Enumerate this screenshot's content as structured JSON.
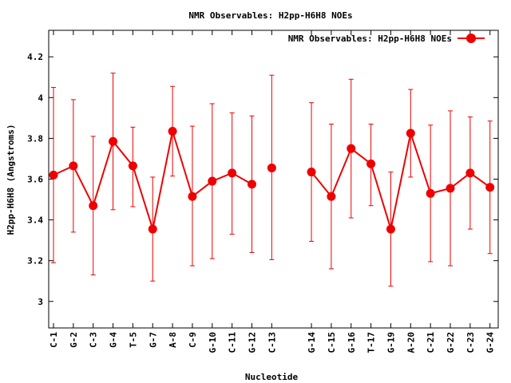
{
  "chart_data": {
    "type": "line",
    "title": "NMR Observables: H2pp-H6H8 NOEs",
    "xlabel": "Nucleotide",
    "ylabel": "H2pp-H6H8 (Angstroms)",
    "ylim": [
      2.87,
      4.33
    ],
    "yticks": [
      "3",
      "3.2",
      "3.4",
      "3.6",
      "3.8",
      "4",
      "4.2"
    ],
    "legend_position": "top-right",
    "grid": false,
    "series_color": "#ee0000",
    "x_positions": [
      1,
      2,
      3,
      4,
      5,
      6,
      7,
      8,
      9,
      10,
      11,
      12,
      14,
      15,
      16,
      17,
      18,
      19,
      20,
      21,
      22,
      23
    ],
    "segments": [
      [
        0,
        11
      ],
      [
        12,
        23
      ]
    ],
    "categories": [
      "C-1",
      "G-2",
      "C-3",
      "G-4",
      "T-5",
      "G-7",
      "A-8",
      "C-9",
      "G-10",
      "C-11",
      "G-12",
      "C-13",
      "G-14",
      "C-15",
      "G-16",
      "T-17",
      "G-19",
      "A-20",
      "C-21",
      "G-22",
      "C-23",
      "G-24"
    ],
    "series": [
      {
        "name": "NMR Observables: H2pp-H6H8 NOEs",
        "values": [
          3.62,
          3.665,
          3.47,
          3.785,
          3.665,
          3.355,
          3.835,
          3.515,
          3.59,
          3.63,
          3.575,
          3.655,
          3.635,
          3.515,
          3.75,
          3.675,
          3.355,
          3.825,
          3.53,
          3.555,
          3.63,
          3.56
        ],
        "err_low": [
          3.19,
          3.34,
          3.13,
          3.45,
          3.465,
          3.1,
          3.615,
          3.175,
          3.21,
          3.33,
          3.24,
          3.205,
          3.295,
          3.16,
          3.41,
          3.47,
          3.075,
          3.61,
          3.195,
          3.175,
          3.355,
          3.235
        ],
        "err_high": [
          4.05,
          3.99,
          3.81,
          4.12,
          3.855,
          3.61,
          4.055,
          3.86,
          3.97,
          3.925,
          3.91,
          4.11,
          3.975,
          3.87,
          4.09,
          3.87,
          3.635,
          4.04,
          3.865,
          3.935,
          3.905,
          3.885
        ]
      }
    ]
  }
}
